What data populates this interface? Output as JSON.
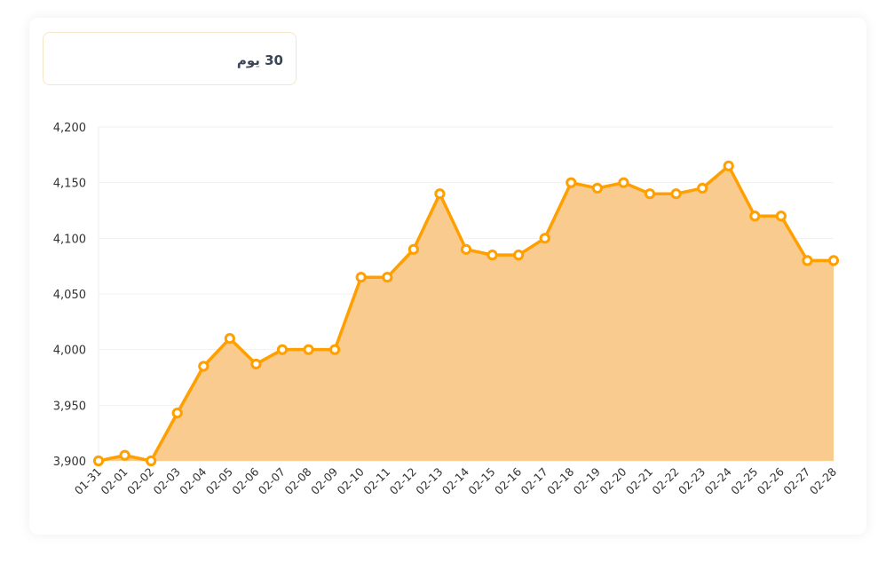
{
  "range_selector": {
    "label": "30 يوم"
  },
  "chart_data": {
    "type": "area",
    "categories": [
      "01-31",
      "02-01",
      "02-02",
      "02-03",
      "02-04",
      "02-05",
      "02-06",
      "02-07",
      "02-08",
      "02-09",
      "02-10",
      "02-11",
      "02-12",
      "02-13",
      "02-14",
      "02-15",
      "02-16",
      "02-17",
      "02-18",
      "02-19",
      "02-20",
      "02-21",
      "02-22",
      "02-23",
      "02-24",
      "02-25",
      "02-26",
      "02-27",
      "02-28"
    ],
    "values": [
      3900,
      3905,
      3900,
      3943,
      3985,
      4010,
      3987,
      4000,
      4000,
      4000,
      4065,
      4065,
      4090,
      4140,
      4090,
      4085,
      4085,
      4100,
      4150,
      4145,
      4150,
      4140,
      4140,
      4145,
      4165,
      4120,
      4120,
      4080,
      4080
    ],
    "ylim": [
      3900,
      4200
    ],
    "yticks": [
      3900,
      3950,
      4000,
      4050,
      4100,
      4150,
      4200
    ],
    "title": "",
    "xlabel": "",
    "ylabel": "",
    "grid": true,
    "colors": {
      "line": "#ff9f00",
      "fill": "#f9cb8e",
      "marker_fill": "#ffffff"
    }
  }
}
